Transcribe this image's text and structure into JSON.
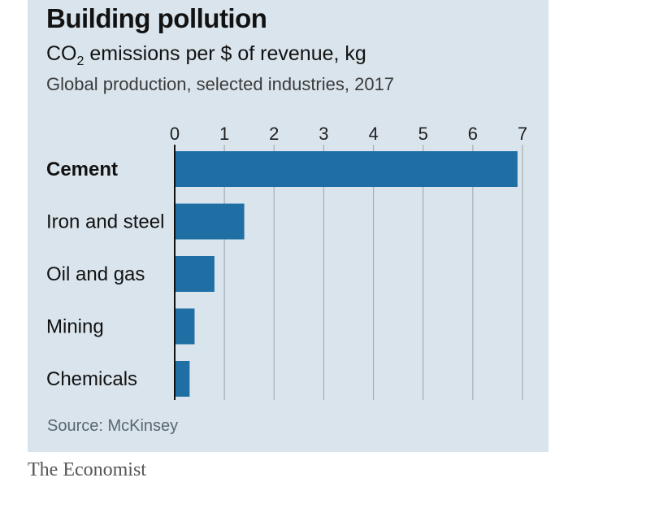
{
  "header": {
    "title": "Building pollution",
    "subtitle_pre": "CO",
    "subtitle_sub": "2",
    "subtitle_post": " emissions per $ of revenue, kg",
    "subtitle2": "Global production, selected industries, 2017"
  },
  "footer": {
    "source": "Source: McKinsey",
    "brand": "The Economist"
  },
  "colors": {
    "background_panel": "#d9e4ec",
    "bar": "#1f6fa5",
    "grid": "#a8aeb3",
    "axis": "#111111"
  },
  "chart_data": {
    "type": "bar",
    "orientation": "horizontal",
    "categories": [
      "Cement",
      "Iron and steel",
      "Oil and gas",
      "Mining",
      "Chemicals"
    ],
    "values": [
      6.9,
      1.4,
      0.8,
      0.4,
      0.3
    ],
    "highlight_category": "Cement",
    "xlim": [
      0,
      7
    ],
    "xticks": [
      "0",
      "1",
      "2",
      "3",
      "4",
      "5",
      "6",
      "7"
    ],
    "tick_position": "top",
    "grid": true
  }
}
